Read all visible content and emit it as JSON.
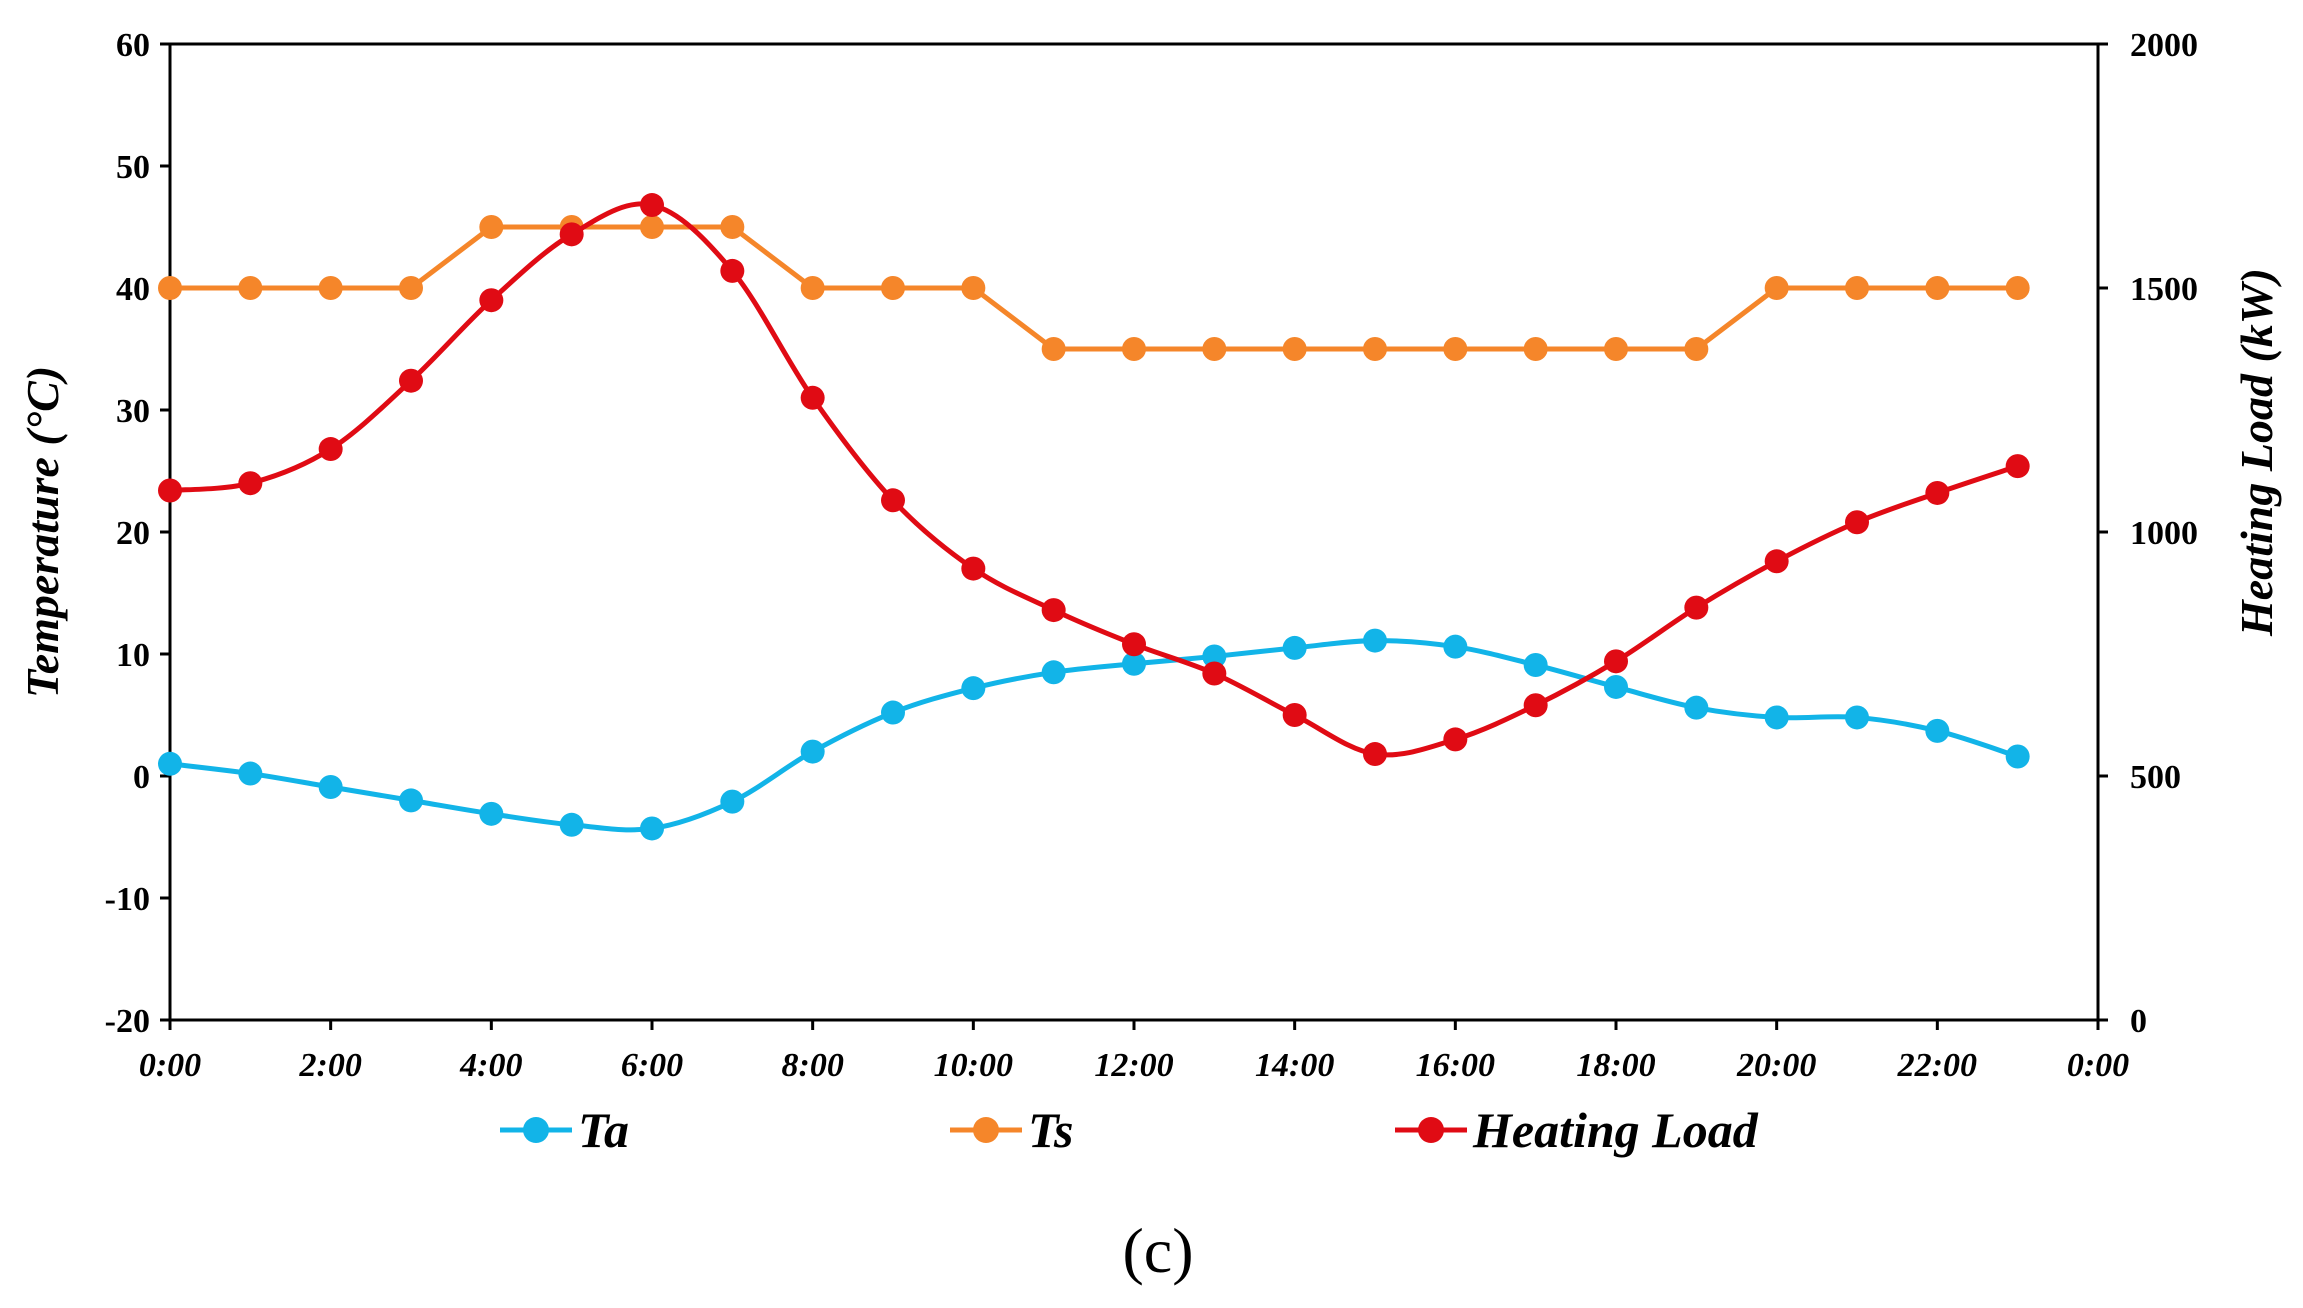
{
  "chart_data": {
    "type": "line",
    "panel_label": "(c)",
    "x": [
      "0:00",
      "1:00",
      "2:00",
      "3:00",
      "4:00",
      "5:00",
      "6:00",
      "7:00",
      "8:00",
      "9:00",
      "10:00",
      "11:00",
      "12:00",
      "13:00",
      "14:00",
      "15:00",
      "16:00",
      "17:00",
      "18:00",
      "19:00",
      "20:00",
      "21:00",
      "22:00",
      "23:00"
    ],
    "x_tick_labels": [
      "0:00",
      "2:00",
      "4:00",
      "6:00",
      "8:00",
      "10:00",
      "12:00",
      "14:00",
      "16:00",
      "18:00",
      "20:00",
      "22:00",
      "0:00"
    ],
    "ylabel": "Temperature (°C)",
    "ylim": [
      -20,
      60
    ],
    "y_ticks": [
      -20,
      -10,
      0,
      10,
      20,
      30,
      40,
      50,
      60
    ],
    "y2label": "Heating Load (kW)",
    "y2lim": [
      0,
      2000
    ],
    "y2_ticks": [
      0,
      500,
      1000,
      1500,
      2000
    ],
    "grid": false,
    "legend_position": "bottom",
    "series": [
      {
        "name": "Ta",
        "axis": "left",
        "color": "#12b4e8",
        "smooth": true,
        "values": [
          1,
          0.2,
          -0.9,
          -2,
          -3.1,
          -4,
          -4.3,
          -2.1,
          2,
          5.2,
          7.2,
          8.5,
          9.2,
          9.8,
          10.5,
          11.1,
          10.6,
          9.1,
          7.3,
          5.6,
          4.8,
          4.8,
          3.7,
          1.6
        ]
      },
      {
        "name": "Ts",
        "axis": "left",
        "color": "#f5862a",
        "smooth": false,
        "values": [
          40,
          40,
          40,
          40,
          45,
          45,
          45,
          45,
          40,
          40,
          40,
          35,
          35,
          35,
          35,
          35,
          35,
          35,
          35,
          35,
          40,
          40,
          40,
          40
        ]
      },
      {
        "name": "Heating Load",
        "axis": "right",
        "color": "#e00b14",
        "smooth": true,
        "values": [
          1085,
          1100,
          1170,
          1310,
          1475,
          1610,
          1670,
          1535,
          1275,
          1065,
          925,
          840,
          770,
          710,
          625,
          545,
          575,
          645,
          735,
          845,
          940,
          1020,
          1080,
          1135
        ]
      }
    ]
  }
}
